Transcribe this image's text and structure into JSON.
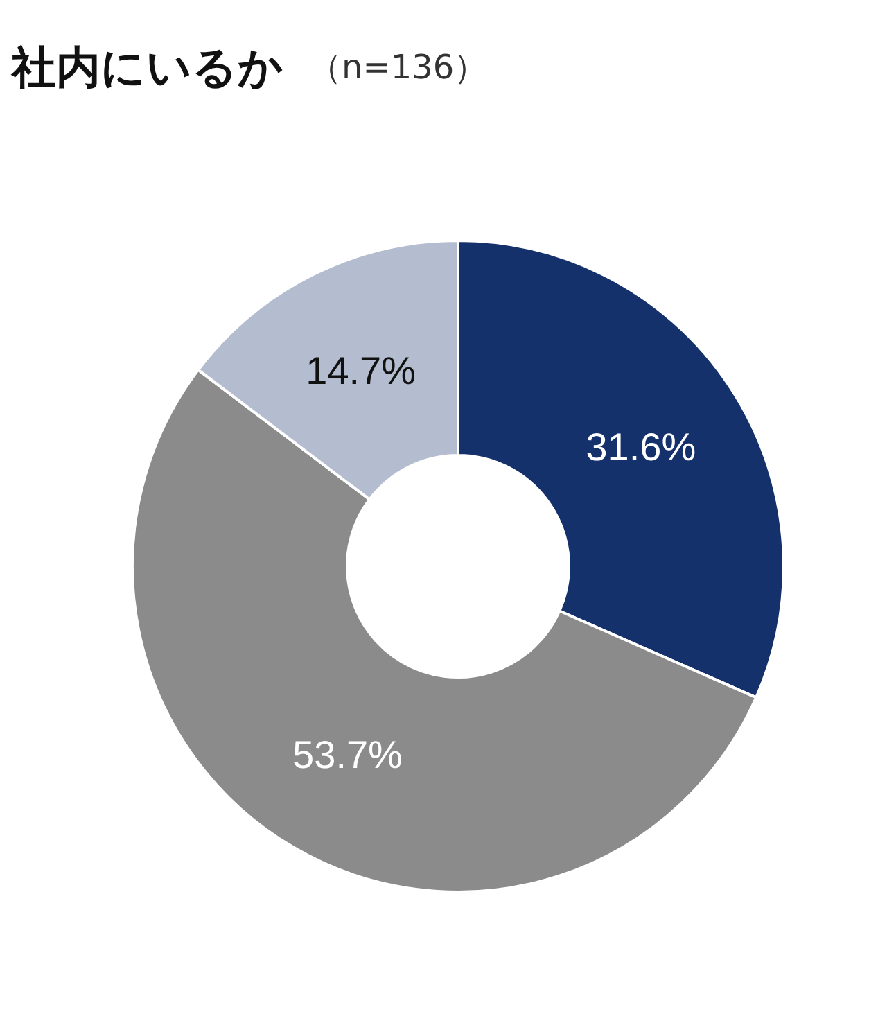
{
  "chart_data": {
    "type": "donut",
    "title": "社内にいるか",
    "subtitle": "（n=136）",
    "categories": [
      null,
      null,
      null
    ],
    "values": [
      31.6,
      53.7,
      14.7
    ],
    "colors": [
      "#14316b",
      "#8c8b8c",
      "#b4bccf"
    ],
    "value_labels": [
      "31.6%",
      "53.7%",
      "14.7%"
    ]
  }
}
